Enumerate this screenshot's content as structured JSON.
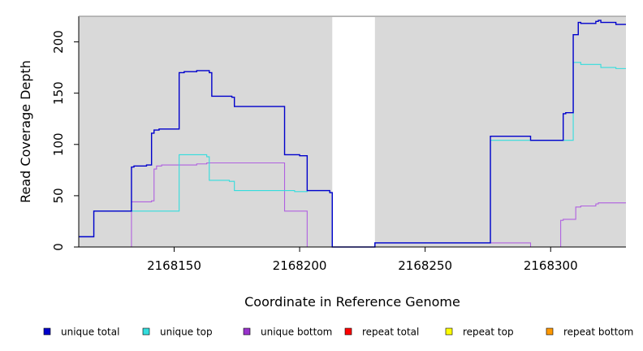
{
  "chart_data": {
    "type": "line",
    "title": "",
    "xlabel": "Coordinate in Reference Genome",
    "ylabel": "Read Coverage Depth",
    "xlim": [
      2168112,
      2168330
    ],
    "ylim": [
      0,
      225
    ],
    "x_ticks": [
      2168150,
      2168200,
      2168250,
      2168300
    ],
    "y_ticks": [
      0,
      50,
      100,
      150,
      200
    ],
    "gap_region": [
      2168213,
      2168230
    ],
    "grid": false,
    "legend_position": "bottom",
    "series": [
      {
        "name": "unique total",
        "color": "#0000cc",
        "points": [
          [
            2168112,
            10
          ],
          [
            2168118,
            10
          ],
          [
            2168118,
            35
          ],
          [
            2168133,
            35
          ],
          [
            2168133,
            78
          ],
          [
            2168134,
            78
          ],
          [
            2168134,
            79
          ],
          [
            2168139,
            79
          ],
          [
            2168139,
            80
          ],
          [
            2168141,
            80
          ],
          [
            2168141,
            111
          ],
          [
            2168142,
            111
          ],
          [
            2168142,
            114
          ],
          [
            2168144,
            114
          ],
          [
            2168144,
            115
          ],
          [
            2168152,
            115
          ],
          [
            2168152,
            170
          ],
          [
            2168154,
            170
          ],
          [
            2168154,
            171
          ],
          [
            2168159,
            171
          ],
          [
            2168159,
            172
          ],
          [
            2168164,
            172
          ],
          [
            2168164,
            170
          ],
          [
            2168165,
            170
          ],
          [
            2168165,
            147
          ],
          [
            2168173,
            147
          ],
          [
            2168173,
            146
          ],
          [
            2168174,
            146
          ],
          [
            2168174,
            137
          ],
          [
            2168194,
            137
          ],
          [
            2168194,
            90
          ],
          [
            2168200,
            90
          ],
          [
            2168200,
            89
          ],
          [
            2168203,
            89
          ],
          [
            2168203,
            55
          ],
          [
            2168212,
            55
          ],
          [
            2168212,
            53
          ],
          [
            2168213,
            53
          ],
          [
            2168213,
            0
          ],
          [
            2168230,
            0
          ],
          [
            2168230,
            4
          ],
          [
            2168276,
            4
          ],
          [
            2168276,
            108
          ],
          [
            2168292,
            108
          ],
          [
            2168292,
            104
          ],
          [
            2168305,
            104
          ],
          [
            2168305,
            130
          ],
          [
            2168306,
            130
          ],
          [
            2168306,
            131
          ],
          [
            2168309,
            131
          ],
          [
            2168309,
            207
          ],
          [
            2168311,
            207
          ],
          [
            2168311,
            219
          ],
          [
            2168312,
            219
          ],
          [
            2168312,
            218
          ],
          [
            2168318,
            218
          ],
          [
            2168318,
            220
          ],
          [
            2168319,
            220
          ],
          [
            2168319,
            221
          ],
          [
            2168320,
            221
          ],
          [
            2168320,
            219
          ],
          [
            2168326,
            219
          ],
          [
            2168326,
            217
          ],
          [
            2168330,
            217
          ]
        ]
      },
      {
        "name": "unique top",
        "color": "#33dddd",
        "points": [
          [
            2168112,
            10
          ],
          [
            2168118,
            10
          ],
          [
            2168118,
            35
          ],
          [
            2168152,
            35
          ],
          [
            2168152,
            90
          ],
          [
            2168163,
            90
          ],
          [
            2168163,
            88
          ],
          [
            2168164,
            88
          ],
          [
            2168164,
            65
          ],
          [
            2168172,
            65
          ],
          [
            2168172,
            64
          ],
          [
            2168174,
            64
          ],
          [
            2168174,
            55
          ],
          [
            2168198,
            55
          ],
          [
            2168198,
            54
          ],
          [
            2168203,
            54
          ],
          [
            2168203,
            55
          ],
          [
            2168212,
            55
          ],
          [
            2168212,
            53
          ],
          [
            2168213,
            53
          ],
          [
            2168213,
            0
          ],
          [
            2168230,
            0
          ],
          [
            2168230,
            4
          ],
          [
            2168276,
            4
          ],
          [
            2168276,
            104
          ],
          [
            2168309,
            104
          ],
          [
            2168309,
            180
          ],
          [
            2168312,
            180
          ],
          [
            2168312,
            178
          ],
          [
            2168320,
            178
          ],
          [
            2168320,
            175
          ],
          [
            2168326,
            175
          ],
          [
            2168326,
            174
          ],
          [
            2168330,
            174
          ]
        ]
      },
      {
        "name": "unique bottom",
        "color": "#b060e0",
        "points": [
          [
            2168112,
            0
          ],
          [
            2168133,
            0
          ],
          [
            2168133,
            44
          ],
          [
            2168141,
            44
          ],
          [
            2168141,
            45
          ],
          [
            2168142,
            45
          ],
          [
            2168142,
            76
          ],
          [
            2168143,
            76
          ],
          [
            2168143,
            79
          ],
          [
            2168145,
            79
          ],
          [
            2168145,
            80
          ],
          [
            2168159,
            80
          ],
          [
            2168159,
            81
          ],
          [
            2168163,
            81
          ],
          [
            2168163,
            82
          ],
          [
            2168194,
            82
          ],
          [
            2168194,
            35
          ],
          [
            2168203,
            35
          ],
          [
            2168203,
            0
          ],
          [
            2168230,
            0
          ],
          [
            2168230,
            4
          ],
          [
            2168292,
            4
          ],
          [
            2168292,
            0
          ],
          [
            2168304,
            0
          ],
          [
            2168304,
            26
          ],
          [
            2168305,
            26
          ],
          [
            2168305,
            27
          ],
          [
            2168310,
            27
          ],
          [
            2168310,
            39
          ],
          [
            2168312,
            39
          ],
          [
            2168312,
            40
          ],
          [
            2168318,
            40
          ],
          [
            2168318,
            42
          ],
          [
            2168319,
            42
          ],
          [
            2168319,
            43
          ],
          [
            2168330,
            43
          ]
        ]
      },
      {
        "name": "repeat total",
        "color": "#ff0000",
        "points": [
          [
            2168112,
            0
          ],
          [
            2168330,
            0
          ]
        ]
      },
      {
        "name": "repeat top",
        "color": "#ffff00",
        "points": [
          [
            2168112,
            0
          ],
          [
            2168330,
            0
          ]
        ]
      },
      {
        "name": "repeat bottom",
        "color": "#ff9900",
        "points": [
          [
            2168112,
            0
          ],
          [
            2168330,
            0
          ]
        ]
      }
    ]
  }
}
